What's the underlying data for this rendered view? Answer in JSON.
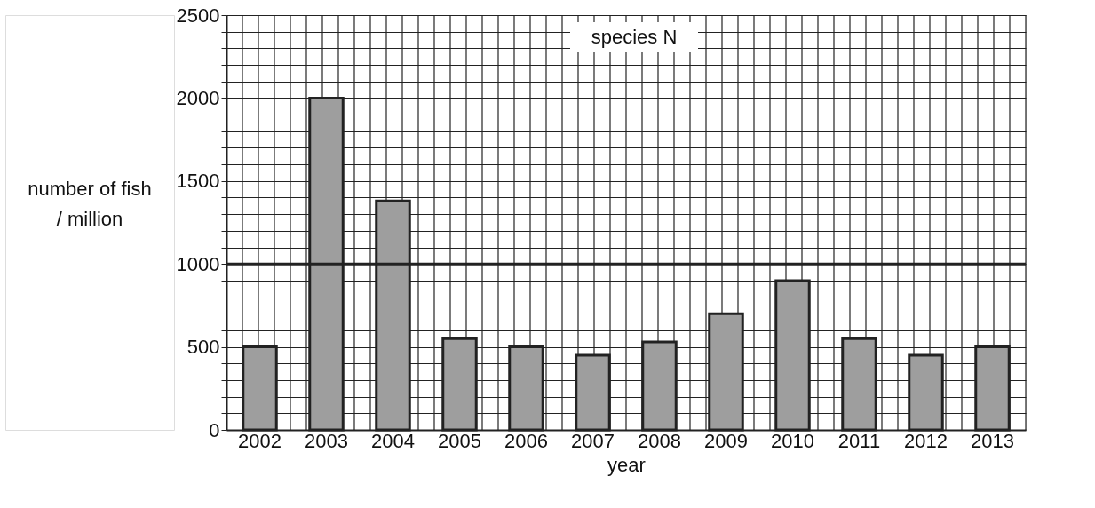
{
  "chart_data": {
    "type": "bar",
    "xlabel": "year",
    "ylabel": "number of fish / million",
    "categories": [
      "2002",
      "2003",
      "2004",
      "2005",
      "2006",
      "2007",
      "2008",
      "2009",
      "2010",
      "2011",
      "2012",
      "2013"
    ],
    "values": [
      500,
      2000,
      1380,
      550,
      500,
      450,
      530,
      700,
      900,
      550,
      450,
      500
    ],
    "color": "#9e9e9e",
    "ylim": [
      0,
      2500
    ],
    "yticks": [
      0,
      {
        "value": 100,
        "label": null
      },
      {
        "value": 200,
        "label": null
      },
      {
        "value": 300,
        "label": null
      },
      {
        "value": 400,
        "label": null
      },
      500,
      {
        "value": 600,
        "label": null
      },
      {
        "value": 700,
        "label": null
      },
      {
        "value": 800,
        "label": null
      },
      {
        "value": 900,
        "label": null
      },
      1000,
      {
        "value": 1100,
        "label": null
      },
      {
        "value": 1200,
        "label": null
      },
      {
        "value": 1300,
        "label": null
      },
      {
        "value": 1400,
        "label": null
      },
      1500,
      {
        "value": 1600,
        "label": null
      },
      {
        "value": 1700,
        "label": null
      },
      {
        "value": 1800,
        "label": null
      },
      {
        "value": 1900,
        "label": null
      },
      2000,
      {
        "value": 2100,
        "label": null
      },
      {
        "value": 2200,
        "label": null
      },
      {
        "value": 2300,
        "label": null
      },
      {
        "value": 2400,
        "label": null
      },
      2500
    ],
    "grid": true,
    "ref_lines": [
      {
        "axis": "y",
        "value": 1000,
        "color": "#222222"
      }
    ],
    "annotations": [
      "species N"
    ]
  }
}
